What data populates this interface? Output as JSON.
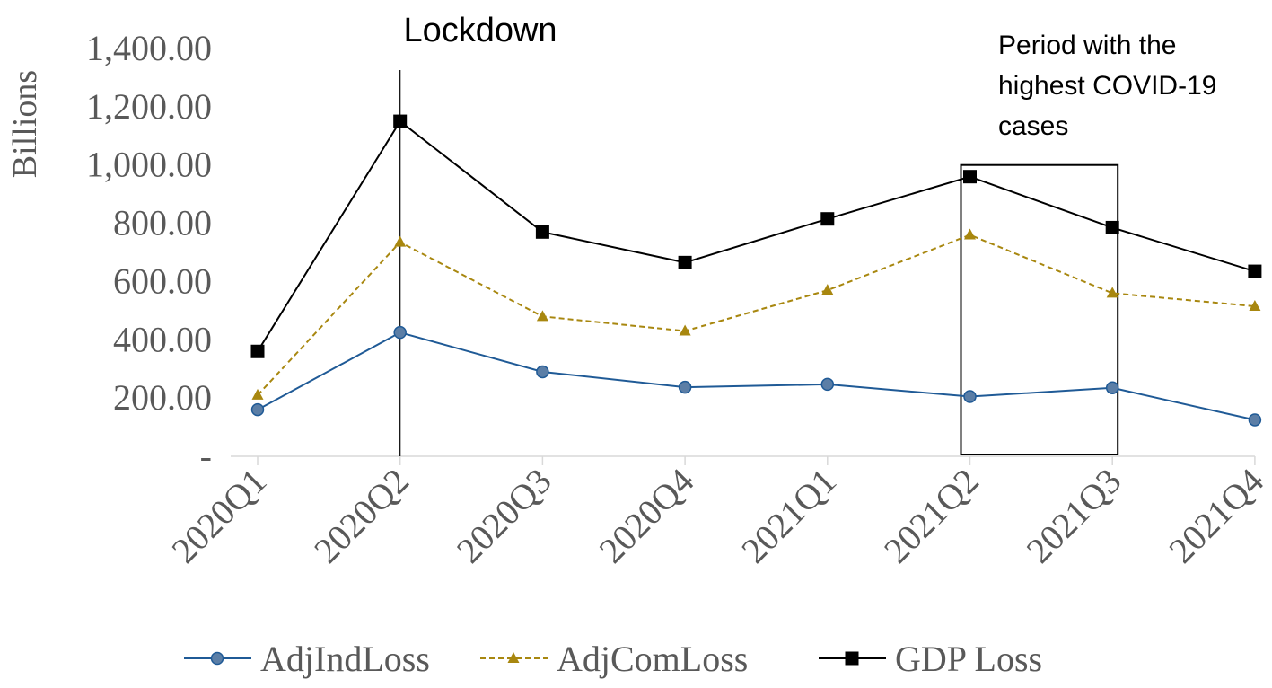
{
  "chart_data": {
    "type": "line",
    "categories": [
      "2020Q1",
      "2020Q2",
      "2020Q3",
      "2020Q4",
      "2021Q1",
      "2021Q2",
      "2021Q3",
      "2021Q4"
    ],
    "ylabel": "Billions",
    "ylim": [
      0,
      1400
    ],
    "yticks": [
      {
        "value": 0,
        "label": "-"
      },
      {
        "value": 200,
        "label": "200.00"
      },
      {
        "value": 400,
        "label": "400.00"
      },
      {
        "value": 600,
        "label": "600.00"
      },
      {
        "value": 800,
        "label": "800.00"
      },
      {
        "value": 1000,
        "label": "1,000.00"
      },
      {
        "value": 1200,
        "label": "1,200.00"
      },
      {
        "value": 1400,
        "label": "1,400.00"
      }
    ],
    "grid": false,
    "legend_position": "bottom",
    "series": [
      {
        "name": "AdjIndLoss",
        "marker": "circle",
        "line": "solid",
        "color": "#1f5a96",
        "marker_color": "#5b7ea6",
        "values": [
          160,
          425,
          290,
          237,
          247,
          205,
          235,
          125
        ]
      },
      {
        "name": "AdjComLoss",
        "marker": "triangle",
        "line": "dashed",
        "color": "#a8870f",
        "marker_color": "#a8870f",
        "values": [
          210,
          735,
          480,
          430,
          570,
          760,
          560,
          515
        ]
      },
      {
        "name": "GDP Loss",
        "marker": "square",
        "line": "solid",
        "color": "#000000",
        "marker_color": "#000000",
        "values": [
          360,
          1150,
          770,
          665,
          815,
          960,
          785,
          635
        ]
      }
    ],
    "annotations": {
      "lockdown": {
        "text": "Lockdown",
        "category": "2020Q2"
      },
      "period": {
        "text_lines": [
          "Period with the",
          "highest COVID-19",
          "cases"
        ],
        "from": "2021Q2",
        "to": "2021Q3",
        "y_top": 1000
      }
    }
  }
}
